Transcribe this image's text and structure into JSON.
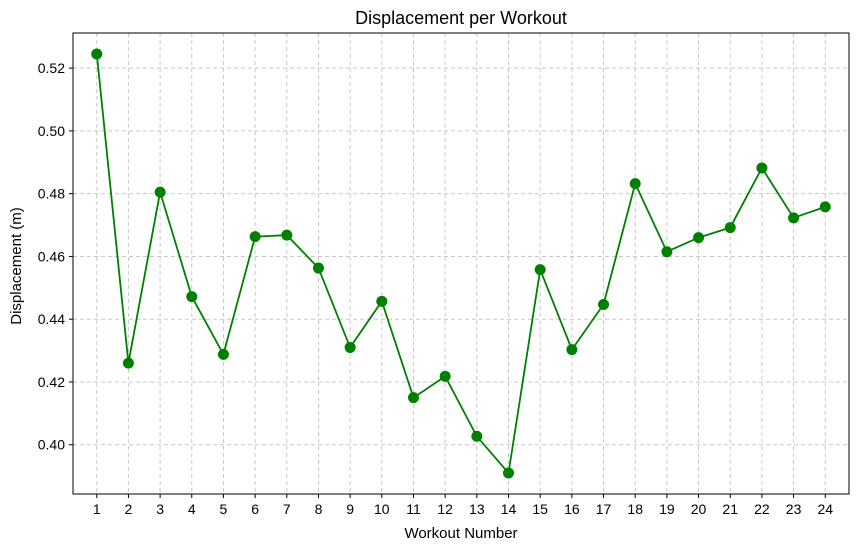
{
  "chart_data": {
    "type": "line",
    "title": "Displacement per Workout",
    "xlabel": "Workout Number",
    "ylabel": "Displacement (m)",
    "x": [
      1,
      2,
      3,
      4,
      5,
      6,
      7,
      8,
      9,
      10,
      11,
      12,
      13,
      14,
      15,
      16,
      17,
      18,
      19,
      20,
      21,
      22,
      23,
      24
    ],
    "series": [
      {
        "values": [
          0.5245,
          0.426,
          0.4805,
          0.4472,
          0.4288,
          0.4663,
          0.4668,
          0.4563,
          0.431,
          0.4457,
          0.415,
          0.4218,
          0.4027,
          0.391,
          0.4558,
          0.4303,
          0.4447,
          0.4832,
          0.4615,
          0.466,
          0.4692,
          0.4882,
          0.4723,
          0.4758
        ],
        "color": "#008000"
      }
    ],
    "xlim": [
      0.25,
      24.75
    ],
    "ylim": [
      0.3843,
      0.5312
    ],
    "yticks": [
      0.4,
      0.42,
      0.44,
      0.46,
      0.48,
      0.5,
      0.52
    ],
    "ytick_labels": [
      "0.40",
      "0.42",
      "0.44",
      "0.46",
      "0.48",
      "0.50",
      "0.52"
    ],
    "xtick_labels": [
      "1",
      "2",
      "3",
      "4",
      "5",
      "6",
      "7",
      "8",
      "9",
      "10",
      "11",
      "12",
      "13",
      "14",
      "15",
      "16",
      "17",
      "18",
      "19",
      "20",
      "21",
      "22",
      "23",
      "24"
    ],
    "grid": true,
    "marker": "circle"
  }
}
